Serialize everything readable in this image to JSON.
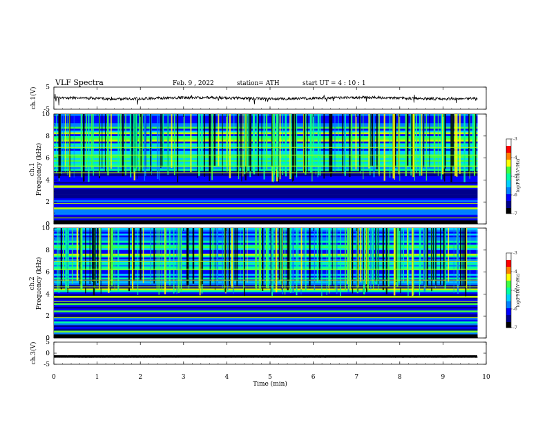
{
  "header": {
    "title": "VLF  Spectra",
    "date": "Feb. 9  , 2022",
    "station": "station= ATH",
    "start": "start  UT  =   4  : 10 : 1"
  },
  "chart_data": [
    {
      "type": "line",
      "name": "ch1-waveform",
      "ylabel": "ch.1(V)",
      "ylim": [
        -5,
        5
      ],
      "yticks": [
        "5",
        "-5"
      ],
      "xlim": [
        0,
        10
      ],
      "baseline": 0,
      "trace_color": "#000000"
    },
    {
      "type": "heatmap",
      "name": "ch1-spectrogram",
      "ylabel_line1": "ch.1",
      "ylabel_line2": "Frequency  (kHz)",
      "ylim": [
        0,
        10
      ],
      "yticks": [
        "0",
        "2",
        "4",
        "6",
        "8",
        "10"
      ],
      "xlim": [
        0,
        9.8
      ],
      "colorbar": {
        "label": "log(PSD)(V²/Hz)",
        "ticks": [
          "-3",
          "-4",
          "-5",
          "-6",
          "-7"
        ],
        "range": [
          -7,
          -3
        ]
      }
    },
    {
      "type": "heatmap",
      "name": "ch2-spectrogram",
      "ylabel_line1": "ch.2",
      "ylabel_line2": "Frequency  (kHz)",
      "ylim": [
        0,
        10
      ],
      "yticks": [
        "0",
        "2",
        "4",
        "6",
        "8",
        "10"
      ],
      "xlim": [
        0,
        9.8
      ],
      "colorbar": {
        "label": "log(PSD)(V²/Hz)",
        "ticks": [
          "-3",
          "-4",
          "-5",
          "-6",
          "-7"
        ],
        "range": [
          -7,
          -3
        ]
      }
    },
    {
      "type": "line",
      "name": "ch3-waveform",
      "ylabel": "ch.3(V)",
      "ylim": [
        -5,
        5
      ],
      "yticks": [
        "5",
        "0",
        "-5"
      ],
      "xlim": [
        0,
        10
      ],
      "baseline": -1.5,
      "trace_color": "#000000"
    }
  ],
  "xaxis": {
    "label": "Time  (min)",
    "ticks": [
      "0",
      "1",
      "2",
      "3",
      "4",
      "5",
      "6",
      "7",
      "8",
      "9",
      "10"
    ],
    "range": [
      0,
      10
    ]
  },
  "colormap": [
    "#000000",
    "#00008c",
    "#0000ff",
    "#0080ff",
    "#00d0ff",
    "#00ffa0",
    "#40ff40",
    "#c0ff00",
    "#ffff00",
    "#ff8000",
    "#ff0000",
    "#ffffff"
  ]
}
